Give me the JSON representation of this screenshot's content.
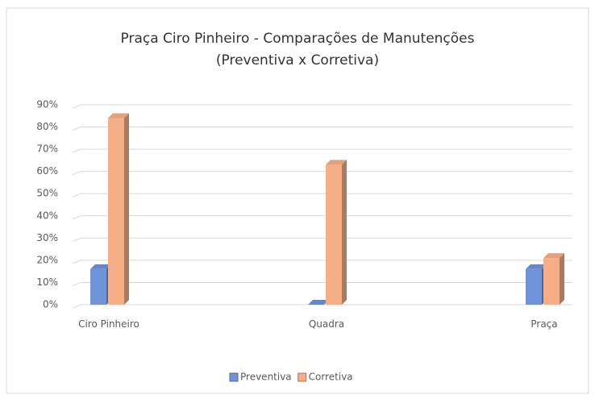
{
  "chart_data": {
    "type": "bar3d",
    "title": "Praça Ciro Pinheiro  - Comparações  de  Manutenções",
    "subtitle": "(Preventiva  x Corretiva)",
    "categories": [
      "Ciro Pinheiro",
      "Quadra",
      "Praça"
    ],
    "series": [
      {
        "name": "Preventiva",
        "color": "#6f93d8",
        "values": [
          16,
          0,
          16
        ]
      },
      {
        "name": "Corretiva",
        "color": "#f6ae86",
        "values": [
          84,
          63,
          21
        ]
      }
    ],
    "ylim": [
      0,
      90
    ],
    "yticks": [
      {
        "value": 0,
        "label": "0%"
      },
      {
        "value": 10,
        "label": "10%"
      },
      {
        "value": 20,
        "label": "20%"
      },
      {
        "value": 30,
        "label": "30%"
      },
      {
        "value": 40,
        "label": "40%"
      },
      {
        "value": 50,
        "label": "50%"
      },
      {
        "value": 60,
        "label": "60%"
      },
      {
        "value": 70,
        "label": "70%"
      },
      {
        "value": 80,
        "label": "80%"
      },
      {
        "value": 90,
        "label": "90%"
      }
    ],
    "grid": true,
    "legend": "bottom"
  }
}
